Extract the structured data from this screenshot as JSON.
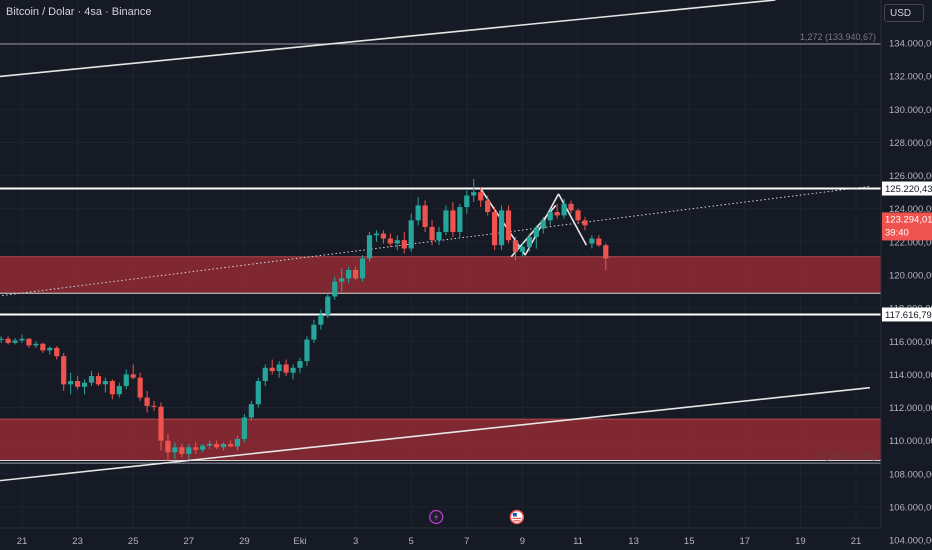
{
  "title": "Bitcoin / Dolar · 4sa · Binance",
  "currency_button": "USD",
  "colors": {
    "up": "#26a69a",
    "down": "#ef5350",
    "zone": "#8f2a33",
    "zone_edge": "#d8d8d8",
    "bg": "#161a25",
    "grid": "#1f2330",
    "text": "#b2b5be"
  },
  "chart_data": {
    "type": "candlestick",
    "title": "Bitcoin / Dolar · 4sa · Binance",
    "ylim": [
      103400,
      136600
    ],
    "y_ticks": [
      "134.000,00",
      "132.000,00",
      "130.000,00",
      "128.000,00",
      "126.000,00",
      "124.000,00",
      "122.000,00",
      "120.000,00",
      "118.000,00",
      "116.000,00",
      "114.000,00",
      "112.000,00",
      "110.000,00",
      "108.000,00",
      "106.000,00",
      "104.000,00"
    ],
    "y_tick_values": [
      134000,
      132000,
      130000,
      128000,
      126000,
      124000,
      122000,
      120000,
      118000,
      116000,
      114000,
      112000,
      110000,
      108000,
      106000,
      104000
    ],
    "x_ticks": [
      "21",
      "23",
      "25",
      "27",
      "29",
      "Eki",
      "3",
      "5",
      "7",
      "9",
      "11",
      "13",
      "15",
      "17",
      "19",
      "21"
    ],
    "x_tick_days": [
      0,
      2,
      4,
      6,
      8,
      10,
      12,
      14,
      16,
      18,
      20,
      22,
      24,
      26,
      28,
      30
    ],
    "price_labels": [
      {
        "text": "125.220,43",
        "value": 125220.43,
        "style": "line"
      },
      {
        "text": "123.294,01",
        "value": 123294.01,
        "style": "current"
      },
      {
        "text": "39:40",
        "value": 123294.01,
        "style": "timer"
      },
      {
        "text": "117.616,79",
        "value": 117616.79,
        "style": "line"
      }
    ],
    "annotations": [
      {
        "text": "1,272 (133.940,67)",
        "value": 133940.67
      },
      {
        "text": "1 (108.643,84)",
        "value": 108643.84
      }
    ],
    "horizontal_lines": [
      133940.67,
      125220.43,
      117616.79,
      108643.84
    ],
    "zones": [
      {
        "from": 118900,
        "to": 121100
      },
      {
        "from": 108800,
        "to": 111300
      }
    ],
    "trend_lines": [
      {
        "from": [
          -1,
          131950
        ],
        "to": [
          27.1,
          136600
        ],
        "style": "solid"
      },
      {
        "from": [
          -1,
          107550
        ],
        "to": [
          30.5,
          113200
        ],
        "style": "solid"
      },
      {
        "from": [
          -1,
          118700
        ],
        "to": [
          30.5,
          125350
        ],
        "style": "dotted"
      },
      {
        "from": [
          16.5,
          125200
        ],
        "to": [
          18.1,
          121200
        ],
        "style": "solid"
      },
      {
        "from": [
          18.1,
          121200
        ],
        "to": [
          19.3,
          124900
        ],
        "style": "solid"
      },
      {
        "from": [
          19.3,
          124900
        ],
        "to": [
          20.3,
          121800
        ],
        "style": "solid"
      },
      {
        "from": [
          17.6,
          121100
        ],
        "to": [
          19.2,
          124200
        ],
        "style": "solid"
      }
    ],
    "series_ohlc": [
      [
        -1,
        116200,
        116400,
        116000,
        116100
      ],
      [
        -0.75,
        116100,
        116300,
        115900,
        116150
      ],
      [
        -0.5,
        116150,
        116300,
        115800,
        115900
      ],
      [
        -0.25,
        115900,
        116200,
        115800,
        116050
      ],
      [
        0,
        116050,
        116400,
        115900,
        116150
      ],
      [
        0.25,
        116150,
        116200,
        115600,
        115750
      ],
      [
        0.5,
        115750,
        116000,
        115600,
        115850
      ],
      [
        0.75,
        115850,
        115900,
        115300,
        115450
      ],
      [
        1,
        115450,
        115700,
        115200,
        115600
      ],
      [
        1.25,
        115600,
        115700,
        114900,
        115100
      ],
      [
        1.5,
        115100,
        115300,
        113000,
        113400
      ],
      [
        1.75,
        113400,
        114100,
        112800,
        113600
      ],
      [
        2,
        113600,
        113900,
        113100,
        113250
      ],
      [
        2.25,
        113250,
        113700,
        112800,
        113500
      ],
      [
        2.5,
        113500,
        114200,
        113300,
        113900
      ],
      [
        2.75,
        113900,
        114100,
        113300,
        113400
      ],
      [
        3,
        113400,
        113800,
        112900,
        113600
      ],
      [
        3.25,
        113600,
        113700,
        112500,
        112800
      ],
      [
        3.5,
        112800,
        113500,
        112600,
        113300
      ],
      [
        3.75,
        113300,
        114300,
        113100,
        114000
      ],
      [
        4,
        114000,
        114600,
        113700,
        113800
      ],
      [
        4.25,
        113800,
        114100,
        112400,
        112600
      ],
      [
        4.5,
        112600,
        113000,
        111700,
        112100
      ],
      [
        4.75,
        112100,
        112400,
        111800,
        112050
      ],
      [
        5,
        112050,
        112300,
        109400,
        110000
      ],
      [
        5.25,
        110000,
        110400,
        108800,
        109300
      ],
      [
        5.5,
        109300,
        109900,
        108900,
        109600
      ],
      [
        5.75,
        109600,
        109800,
        109000,
        109200
      ],
      [
        6,
        109200,
        109800,
        108900,
        109600
      ],
      [
        6.25,
        109600,
        109900,
        109200,
        109450
      ],
      [
        6.5,
        109450,
        109800,
        109300,
        109700
      ],
      [
        6.75,
        109700,
        110000,
        109500,
        109800
      ],
      [
        7,
        109800,
        110000,
        109500,
        109600
      ],
      [
        7.25,
        109600,
        109900,
        109400,
        109800
      ],
      [
        7.5,
        109800,
        110000,
        109600,
        109650
      ],
      [
        7.75,
        109650,
        110300,
        109400,
        110100
      ],
      [
        8,
        110100,
        111600,
        109900,
        111400
      ],
      [
        8.25,
        111400,
        112400,
        111200,
        112200
      ],
      [
        8.5,
        112200,
        113800,
        112000,
        113600
      ],
      [
        8.75,
        113600,
        114600,
        113300,
        114400
      ],
      [
        9,
        114400,
        114900,
        114000,
        114200
      ],
      [
        9.25,
        114200,
        114800,
        113800,
        114600
      ],
      [
        9.5,
        114600,
        114900,
        113900,
        114100
      ],
      [
        9.75,
        114100,
        114600,
        113700,
        114400
      ],
      [
        10,
        114400,
        115000,
        114100,
        114800
      ],
      [
        10.25,
        114800,
        116300,
        114500,
        116100
      ],
      [
        10.5,
        116100,
        117300,
        115900,
        117000
      ],
      [
        10.75,
        117000,
        117900,
        116700,
        117600
      ],
      [
        11,
        117600,
        118900,
        117400,
        118700
      ],
      [
        11.25,
        118700,
        119900,
        118500,
        119600
      ],
      [
        11.5,
        119600,
        120400,
        119000,
        119800
      ],
      [
        11.75,
        119800,
        120500,
        119500,
        120300
      ],
      [
        12,
        120300,
        120500,
        119700,
        119800
      ],
      [
        12.25,
        119800,
        121200,
        119600,
        121000
      ],
      [
        12.5,
        121000,
        122600,
        120800,
        122400
      ],
      [
        12.75,
        122400,
        122700,
        122000,
        122500
      ],
      [
        13,
        122500,
        122700,
        121900,
        122200
      ],
      [
        13.25,
        122200,
        122500,
        121700,
        121900
      ],
      [
        13.5,
        121900,
        122400,
        121500,
        122100
      ],
      [
        13.75,
        122100,
        122600,
        121300,
        121600
      ],
      [
        14,
        121600,
        123700,
        121400,
        123300
      ],
      [
        14.25,
        123300,
        124700,
        123000,
        124200
      ],
      [
        14.5,
        124200,
        124500,
        122600,
        122900
      ],
      [
        14.75,
        122900,
        123300,
        121800,
        122100
      ],
      [
        15,
        122100,
        122900,
        121800,
        122600
      ],
      [
        15.25,
        122600,
        124200,
        122400,
        123900
      ],
      [
        15.5,
        123900,
        124400,
        122300,
        122600
      ],
      [
        15.75,
        122600,
        124300,
        122300,
        124100
      ],
      [
        16,
        124100,
        125100,
        123700,
        124800
      ],
      [
        16.25,
        124800,
        125800,
        124400,
        125000
      ],
      [
        16.5,
        125000,
        125300,
        124100,
        124500
      ],
      [
        16.75,
        124500,
        124800,
        123600,
        123800
      ],
      [
        17,
        123800,
        124100,
        121500,
        121800
      ],
      [
        17.25,
        121800,
        124200,
        121500,
        123900
      ],
      [
        17.5,
        123900,
        124200,
        121900,
        122100
      ],
      [
        17.75,
        122100,
        122300,
        120900,
        121400
      ],
      [
        18,
        121400,
        121900,
        121100,
        121700
      ],
      [
        18.25,
        121700,
        122500,
        121400,
        122300
      ],
      [
        18.5,
        122300,
        123000,
        121600,
        122800
      ],
      [
        18.75,
        122800,
        123500,
        122500,
        123300
      ],
      [
        19,
        123300,
        124000,
        123000,
        123800
      ],
      [
        19.25,
        123800,
        124300,
        123400,
        123600
      ],
      [
        19.5,
        123600,
        124600,
        123400,
        124300
      ],
      [
        19.75,
        124300,
        124500,
        123700,
        123900
      ],
      [
        20,
        123900,
        124000,
        123100,
        123300
      ],
      [
        20.25,
        123300,
        123500,
        122700,
        123000
      ],
      [
        20.5,
        121900,
        122400,
        121600,
        122200
      ],
      [
        20.75,
        122200,
        122400,
        121700,
        121800
      ],
      [
        21,
        121800,
        121900,
        120300,
        121000
      ]
    ]
  },
  "events": [
    {
      "icon": "lightning-icon",
      "day": 14.9
    },
    {
      "icon": "us-flag-icon",
      "day": 17.8
    }
  ]
}
